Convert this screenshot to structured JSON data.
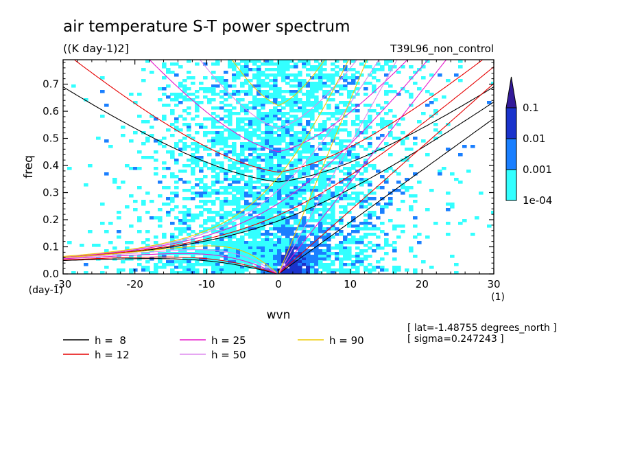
{
  "chart_data": {
    "type": "heatmap",
    "title": "air temperature S-T power spectrum",
    "subtitle": "((K day-1)2]",
    "run_label": "T39L96_non_control",
    "xlabel": "wvn",
    "ylabel": "freq",
    "x_unit": "(1)",
    "y_unit": "(day-1)",
    "xlim": [
      -30,
      30
    ],
    "ylim": [
      0,
      0.79
    ],
    "x_ticks": [
      -30,
      -20,
      -10,
      0,
      10,
      20,
      30
    ],
    "x_tick_labels": [
      "-30",
      "-20",
      "-10",
      "0",
      "10",
      "20",
      "30"
    ],
    "y_ticks": [
      0,
      0.1,
      0.2,
      0.3,
      0.4,
      0.5,
      0.6,
      0.7
    ],
    "y_tick_labels": [
      "0.0",
      "0.1",
      "0.2",
      "0.3",
      "0.4",
      "0.5",
      "0.6",
      "0.7"
    ],
    "colorbar": {
      "levels": [
        "1e-04",
        "0.001",
        "0.01",
        "0.1"
      ],
      "colors": [
        "#33ffff",
        "#1a7fff",
        "#1a33cc",
        "#331a99"
      ],
      "scale": "log"
    },
    "dispersion_curves": [
      {
        "label": "h =  8",
        "h": 8,
        "color": "#000000"
      },
      {
        "label": "h = 12",
        "h": 12,
        "color": "#e60000"
      },
      {
        "label": "h = 25",
        "h": 25,
        "color": "#e619cc"
      },
      {
        "label": "h = 50",
        "h": 50,
        "color": "#dd88ee"
      },
      {
        "label": "h = 90",
        "h": 90,
        "color": "#eecc00"
      }
    ],
    "annotations": [
      "[ lat=-1.48755 degrees_north ]",
      "[ sigma=0.247243 ]"
    ]
  }
}
